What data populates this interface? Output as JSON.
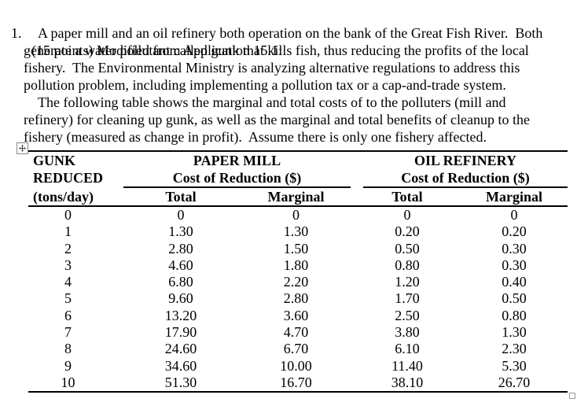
{
  "document": {
    "list_marker": "1.",
    "heading": "(15 points) Modified from Application 15.1:",
    "lines": [
      {
        "text": "A paper mill and an oil refinery both operation on the bank of the Great Fish River.  Both",
        "indent": true
      },
      {
        "text": "generate a water pollutant called gunk that kills fish, thus reducing the profits of the local",
        "indent": false
      },
      {
        "text": "fishery.  The Environmental Ministry is analyzing alternative regulations to address this",
        "indent": false
      },
      {
        "text": "pollution problem, including implementing a pollution tax or a cap-and-trade system.",
        "indent": false
      },
      {
        "text": "The following table shows the marginal and total costs of to the polluters (mill and",
        "indent": true
      },
      {
        "text": "refinery) for cleaning up gunk, as well as the marginal and total benefits of cleanup to the",
        "indent": false
      },
      {
        "text": "fishery (measured as change in profit).  Assume there is only one fishery affected.",
        "indent": false
      }
    ]
  },
  "table": {
    "column1": {
      "line1": "GUNK",
      "line2": "REDUCED",
      "line3": "(tons/day)"
    },
    "groups": [
      {
        "title": "PAPER MILL",
        "subtitle": "Cost of Reduction ($)",
        "columns": [
          "Total",
          "Marginal"
        ]
      },
      {
        "title": "OIL REFINERY",
        "subtitle": "Cost of Reduction ($)",
        "columns": [
          "Total",
          "Marginal"
        ]
      }
    ],
    "rows": [
      [
        "0",
        "0",
        "0",
        "0",
        "0"
      ],
      [
        "1",
        "1.30",
        "1.30",
        "0.20",
        "0.20"
      ],
      [
        "2",
        "2.80",
        "1.50",
        "0.50",
        "0.30"
      ],
      [
        "3",
        "4.60",
        "1.80",
        "0.80",
        "0.30"
      ],
      [
        "4",
        "6.80",
        "2.20",
        "1.20",
        "0.40"
      ],
      [
        "5",
        "9.60",
        "2.80",
        "1.70",
        "0.50"
      ],
      [
        "6",
        "13.20",
        "3.60",
        "2.50",
        "0.80"
      ],
      [
        "7",
        "17.90",
        "4.70",
        "3.80",
        "1.30"
      ],
      [
        "8",
        "24.60",
        "6.70",
        "6.10",
        "2.30"
      ],
      [
        "9",
        "34.60",
        "10.00",
        "11.40",
        "5.30"
      ],
      [
        "10",
        "51.30",
        "16.70",
        "38.10",
        "26.70"
      ]
    ],
    "border_color": "#000000"
  },
  "word_ui": {
    "move_handle_icon": "table-move-handle",
    "resize_handle_icon": "table-resize-handle",
    "handle_border_color": "#888888"
  }
}
